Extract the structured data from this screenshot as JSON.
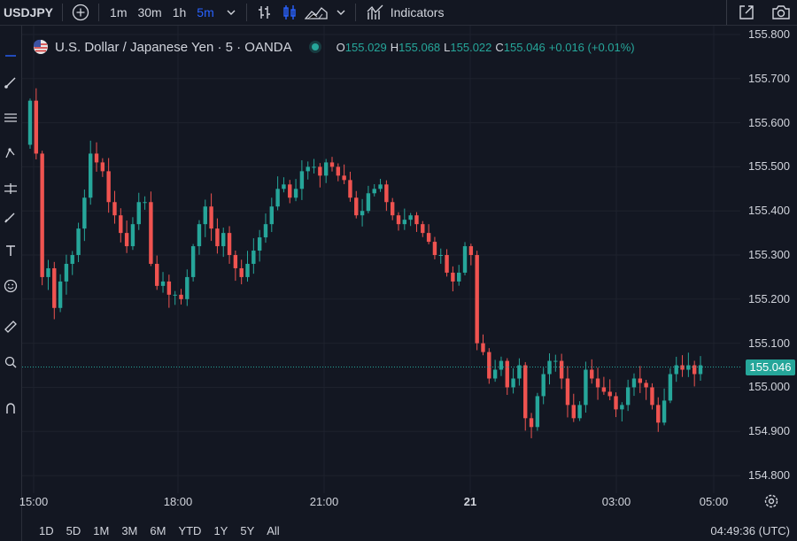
{
  "toolbar": {
    "symbol": "USDJPY",
    "add_icon": "plus-circle-icon",
    "intervals": [
      "1m",
      "30m",
      "1h",
      "5m"
    ],
    "active_interval": "5m",
    "indicators_label": "Indicators"
  },
  "legend": {
    "title": "U.S. Dollar / Japanese Yen · 5 · OANDA",
    "open_label": "O",
    "open": "155.029",
    "high_label": "H",
    "high": "155.068",
    "low_label": "L",
    "low": "155.022",
    "close_label": "C",
    "close": "155.046",
    "change": "+0.016 (+0.01%)"
  },
  "price_scale": {
    "labels": [
      "155.800",
      "155.700",
      "155.600",
      "155.500",
      "155.400",
      "155.300",
      "155.200",
      "155.100",
      "155.000",
      "154.900",
      "154.800"
    ],
    "current_price": "155.046"
  },
  "time_axis": {
    "labels": [
      "15:00",
      "18:00",
      "21:00",
      "21",
      "03:00",
      "05:00"
    ]
  },
  "bottom_bar": {
    "ranges": [
      "1D",
      "5D",
      "1M",
      "3M",
      "6M",
      "YTD",
      "1Y",
      "5Y",
      "All"
    ],
    "clock": "04:49:36 (UTC)"
  },
  "colors": {
    "up": "#26a69a",
    "down": "#ef5350",
    "background": "#131722",
    "grid": "#1e222d",
    "accent": "#2962ff"
  },
  "chart_data": {
    "type": "candlestick",
    "interval": "5m",
    "ylim": [
      154.76,
      155.82
    ],
    "current_price": 155.046,
    "close_series": [
      155.65,
      155.53,
      155.25,
      155.27,
      155.18,
      155.24,
      155.28,
      155.3,
      155.36,
      155.43,
      155.53,
      155.51,
      155.49,
      155.42,
      155.39,
      155.35,
      155.32,
      155.37,
      155.42,
      155.42,
      155.28,
      155.23,
      155.24,
      155.21,
      155.21,
      155.2,
      155.25,
      155.32,
      155.37,
      155.41,
      155.36,
      155.32,
      155.35,
      155.3,
      155.27,
      155.25,
      155.28,
      155.31,
      155.34,
      155.37,
      155.41,
      155.45,
      155.46,
      155.43,
      155.45,
      155.49,
      155.5,
      155.5,
      155.48,
      155.51,
      155.5,
      155.48,
      155.47,
      155.43,
      155.39,
      155.4,
      155.44,
      155.45,
      155.46,
      155.42,
      155.39,
      155.37,
      155.38,
      155.39,
      155.37,
      155.35,
      155.33,
      155.3,
      155.3,
      155.26,
      155.24,
      155.26,
      155.32,
      155.3,
      155.1,
      155.08,
      155.02,
      155.04,
      155.06,
      155.0,
      155.02,
      155.05,
      154.93,
      154.91,
      154.98,
      155.03,
      155.06,
      155.06,
      155.02,
      154.96,
      154.93,
      154.96,
      155.04,
      155.02,
      155.0,
      154.99,
      154.98,
      154.95,
      154.96,
      155.0,
      155.02,
      155.01,
      155.0,
      154.96,
      154.92,
      154.97,
      155.03,
      155.05,
      155.04,
      155.05,
      155.03,
      155.05
    ]
  }
}
